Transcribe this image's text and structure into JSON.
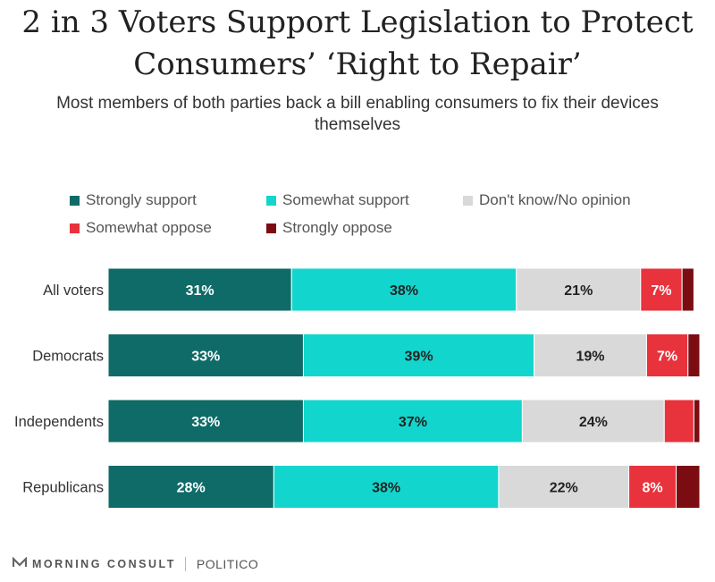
{
  "header": {
    "title_line1": "2 in 3 Voters Support Legislation to Protect",
    "title_line2": "Consumers’ ‘Right to Repair’",
    "subtitle_line1": "Most members of both parties back a bill enabling consumers to fix their devices",
    "subtitle_line2": "themselves"
  },
  "chart_data": {
    "type": "bar",
    "orientation": "horizontal",
    "stacked": true,
    "title": "2 in 3 Voters Support Legislation to Protect Consumers’ ‘Right to Repair’",
    "subtitle": "Most members of both parties back a bill enabling consumers to fix their devices themselves",
    "xlabel": "",
    "ylabel": "",
    "xlim": [
      0,
      100
    ],
    "grid": false,
    "legend_position": "top",
    "categories": [
      "All voters",
      "Democrats",
      "Independents",
      "Republicans"
    ],
    "series": [
      {
        "name": "Strongly support",
        "color": "#0f6b67",
        "label_color": "#ffffff",
        "values": [
          31,
          33,
          33,
          28
        ],
        "labels": [
          "31%",
          "33%",
          "33%",
          "28%"
        ]
      },
      {
        "name": "Somewhat support",
        "color": "#12d6cd",
        "label_color": "#222222",
        "values": [
          38,
          39,
          37,
          38
        ],
        "labels": [
          "38%",
          "39%",
          "37%",
          "38%"
        ]
      },
      {
        "name": "Don't know/No opinion",
        "color": "#d9d9d9",
        "label_color": "#222222",
        "values": [
          21,
          19,
          24,
          22
        ],
        "labels": [
          "21%",
          "19%",
          "24%",
          "22%"
        ]
      },
      {
        "name": "Somewhat oppose",
        "color": "#e8323c",
        "label_color": "#ffffff",
        "values": [
          7,
          7,
          5,
          8
        ],
        "labels": [
          "7%",
          "7%",
          "",
          "8%"
        ]
      },
      {
        "name": "Strongly oppose",
        "color": "#7b0d12",
        "label_color": "#ffffff",
        "values": [
          2,
          2,
          1,
          4
        ],
        "labels": [
          "",
          "",
          "",
          ""
        ]
      }
    ]
  },
  "footer": {
    "source1": "MORNING CONSULT",
    "source2": "POLITICO"
  }
}
